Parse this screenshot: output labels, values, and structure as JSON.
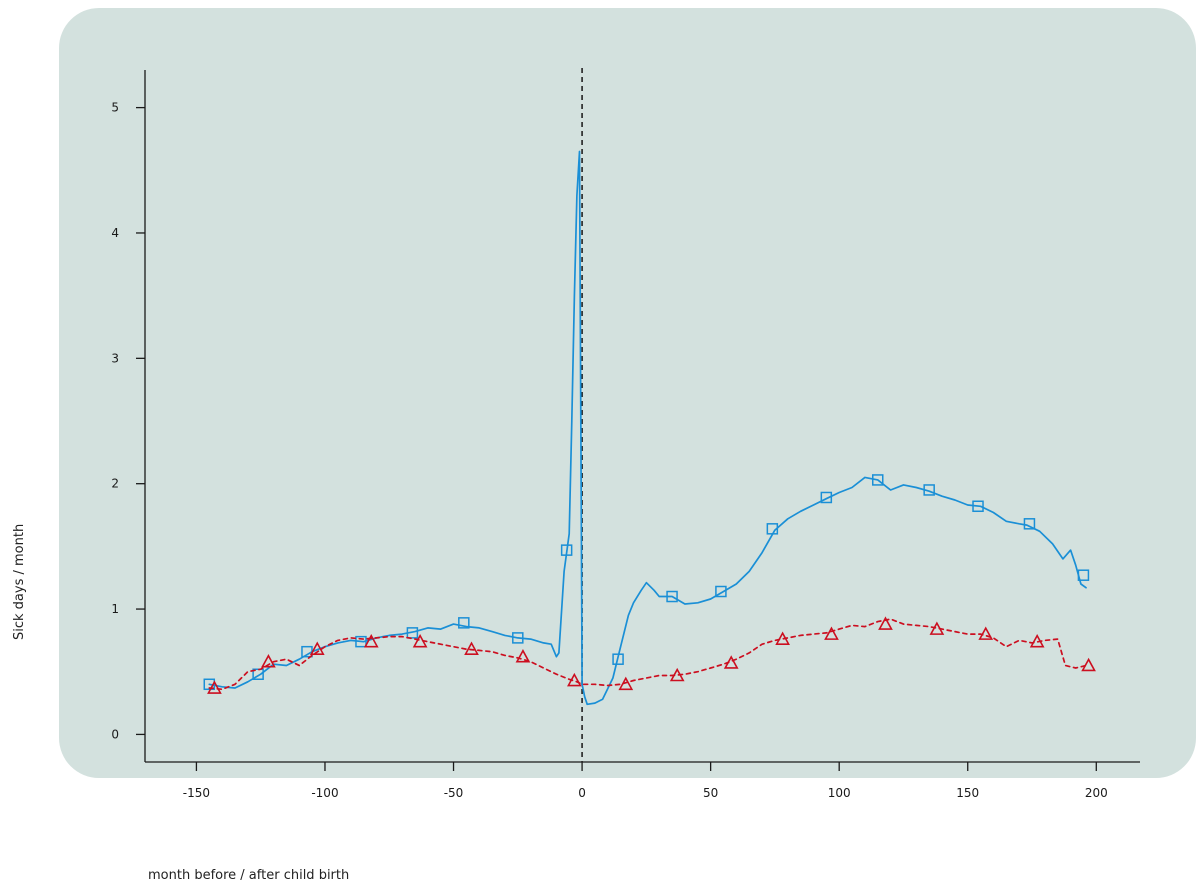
{
  "chart_data": {
    "type": "line",
    "xlabel": "month before / after child birth",
    "ylabel": "Sick days / month",
    "xlim": [
      -170,
      217
    ],
    "ylim": [
      -0.22,
      5.3
    ],
    "x_ticks": [
      -150,
      -100,
      -50,
      0,
      50,
      100,
      150,
      200
    ],
    "y_ticks": [
      0,
      1,
      2,
      3,
      4,
      5
    ],
    "vline_x": 0,
    "series": [
      {
        "color": "#1a8fd6",
        "line_style": "solid",
        "marker": "square",
        "line": [
          [
            -145,
            0.4
          ],
          [
            -140,
            0.38
          ],
          [
            -135,
            0.37
          ],
          [
            -130,
            0.42
          ],
          [
            -125,
            0.48
          ],
          [
            -120,
            0.56
          ],
          [
            -115,
            0.55
          ],
          [
            -110,
            0.6
          ],
          [
            -105,
            0.66
          ],
          [
            -100,
            0.7
          ],
          [
            -95,
            0.73
          ],
          [
            -90,
            0.75
          ],
          [
            -85,
            0.74
          ],
          [
            -80,
            0.77
          ],
          [
            -75,
            0.79
          ],
          [
            -70,
            0.8
          ],
          [
            -65,
            0.82
          ],
          [
            -60,
            0.85
          ],
          [
            -55,
            0.84
          ],
          [
            -50,
            0.88
          ],
          [
            -45,
            0.86
          ],
          [
            -40,
            0.85
          ],
          [
            -35,
            0.82
          ],
          [
            -30,
            0.79
          ],
          [
            -25,
            0.77
          ],
          [
            -20,
            0.76
          ],
          [
            -15,
            0.73
          ],
          [
            -12,
            0.72
          ],
          [
            -10,
            0.62
          ],
          [
            -9,
            0.65
          ],
          [
            -7,
            1.3
          ],
          [
            -5,
            1.6
          ],
          [
            -4,
            2.5
          ],
          [
            -3,
            3.5
          ],
          [
            -2,
            4.3
          ],
          [
            -1,
            4.65
          ],
          [
            0,
            0.4
          ],
          [
            1,
            0.3
          ],
          [
            2,
            0.24
          ],
          [
            5,
            0.25
          ],
          [
            8,
            0.28
          ],
          [
            12,
            0.45
          ],
          [
            15,
            0.7
          ],
          [
            18,
            0.95
          ],
          [
            20,
            1.05
          ],
          [
            23,
            1.15
          ],
          [
            25,
            1.21
          ],
          [
            28,
            1.15
          ],
          [
            30,
            1.1
          ],
          [
            35,
            1.1
          ],
          [
            40,
            1.04
          ],
          [
            45,
            1.05
          ],
          [
            50,
            1.08
          ],
          [
            55,
            1.14
          ],
          [
            60,
            1.2
          ],
          [
            65,
            1.3
          ],
          [
            70,
            1.45
          ],
          [
            75,
            1.63
          ],
          [
            80,
            1.72
          ],
          [
            85,
            1.78
          ],
          [
            90,
            1.83
          ],
          [
            95,
            1.88
          ],
          [
            100,
            1.93
          ],
          [
            105,
            1.97
          ],
          [
            110,
            2.05
          ],
          [
            115,
            2.03
          ],
          [
            120,
            1.95
          ],
          [
            125,
            1.99
          ],
          [
            130,
            1.97
          ],
          [
            135,
            1.94
          ],
          [
            140,
            1.9
          ],
          [
            145,
            1.87
          ],
          [
            150,
            1.83
          ],
          [
            155,
            1.82
          ],
          [
            160,
            1.77
          ],
          [
            165,
            1.7
          ],
          [
            170,
            1.68
          ],
          [
            173,
            1.67
          ],
          [
            178,
            1.62
          ],
          [
            183,
            1.52
          ],
          [
            187,
            1.4
          ],
          [
            190,
            1.47
          ],
          [
            192,
            1.35
          ],
          [
            194,
            1.2
          ],
          [
            196,
            1.17
          ]
        ],
        "markers": [
          [
            -145,
            0.4
          ],
          [
            -126,
            0.48
          ],
          [
            -107,
            0.66
          ],
          [
            -86,
            0.74
          ],
          [
            -66,
            0.81
          ],
          [
            -46,
            0.89
          ],
          [
            -25,
            0.77
          ],
          [
            -6,
            1.47
          ],
          [
            14,
            0.6
          ],
          [
            35,
            1.1
          ],
          [
            54,
            1.14
          ],
          [
            74,
            1.64
          ],
          [
            95,
            1.89
          ],
          [
            115,
            2.03
          ],
          [
            135,
            1.95
          ],
          [
            154,
            1.82
          ],
          [
            174,
            1.68
          ],
          [
            195,
            1.27
          ]
        ]
      },
      {
        "color": "#cc0f20",
        "line_style": "dashed",
        "marker": "triangle",
        "line": [
          [
            -145,
            0.37
          ],
          [
            -140,
            0.36
          ],
          [
            -135,
            0.4
          ],
          [
            -130,
            0.5
          ],
          [
            -125,
            0.52
          ],
          [
            -120,
            0.58
          ],
          [
            -115,
            0.6
          ],
          [
            -110,
            0.55
          ],
          [
            -105,
            0.63
          ],
          [
            -100,
            0.7
          ],
          [
            -95,
            0.75
          ],
          [
            -90,
            0.77
          ],
          [
            -85,
            0.76
          ],
          [
            -80,
            0.77
          ],
          [
            -75,
            0.78
          ],
          [
            -70,
            0.78
          ],
          [
            -65,
            0.76
          ],
          [
            -60,
            0.74
          ],
          [
            -55,
            0.72
          ],
          [
            -50,
            0.7
          ],
          [
            -45,
            0.68
          ],
          [
            -40,
            0.67
          ],
          [
            -35,
            0.66
          ],
          [
            -30,
            0.63
          ],
          [
            -25,
            0.61
          ],
          [
            -20,
            0.58
          ],
          [
            -15,
            0.53
          ],
          [
            -10,
            0.48
          ],
          [
            -5,
            0.44
          ],
          [
            -2,
            0.42
          ],
          [
            0,
            0.4
          ],
          [
            5,
            0.4
          ],
          [
            10,
            0.39
          ],
          [
            15,
            0.4
          ],
          [
            20,
            0.43
          ],
          [
            25,
            0.45
          ],
          [
            30,
            0.47
          ],
          [
            35,
            0.47
          ],
          [
            40,
            0.48
          ],
          [
            45,
            0.5
          ],
          [
            50,
            0.53
          ],
          [
            55,
            0.56
          ],
          [
            60,
            0.6
          ],
          [
            65,
            0.65
          ],
          [
            70,
            0.72
          ],
          [
            75,
            0.75
          ],
          [
            80,
            0.77
          ],
          [
            85,
            0.79
          ],
          [
            90,
            0.8
          ],
          [
            95,
            0.81
          ],
          [
            100,
            0.84
          ],
          [
            105,
            0.87
          ],
          [
            110,
            0.86
          ],
          [
            115,
            0.9
          ],
          [
            120,
            0.92
          ],
          [
            125,
            0.88
          ],
          [
            130,
            0.87
          ],
          [
            135,
            0.86
          ],
          [
            140,
            0.84
          ],
          [
            145,
            0.82
          ],
          [
            150,
            0.8
          ],
          [
            155,
            0.8
          ],
          [
            160,
            0.77
          ],
          [
            165,
            0.7
          ],
          [
            170,
            0.75
          ],
          [
            175,
            0.73
          ],
          [
            180,
            0.75
          ],
          [
            185,
            0.76
          ],
          [
            188,
            0.55
          ],
          [
            192,
            0.53
          ],
          [
            196,
            0.55
          ]
        ],
        "markers": [
          [
            -143,
            0.37
          ],
          [
            -122,
            0.58
          ],
          [
            -103,
            0.68
          ],
          [
            -82,
            0.74
          ],
          [
            -63,
            0.74
          ],
          [
            -43,
            0.68
          ],
          [
            -23,
            0.62
          ],
          [
            -3,
            0.43
          ],
          [
            17,
            0.4
          ],
          [
            37,
            0.47
          ],
          [
            58,
            0.57
          ],
          [
            78,
            0.76
          ],
          [
            97,
            0.8
          ],
          [
            118,
            0.88
          ],
          [
            138,
            0.84
          ],
          [
            157,
            0.8
          ],
          [
            177,
            0.74
          ],
          [
            197,
            0.55
          ]
        ]
      }
    ]
  }
}
